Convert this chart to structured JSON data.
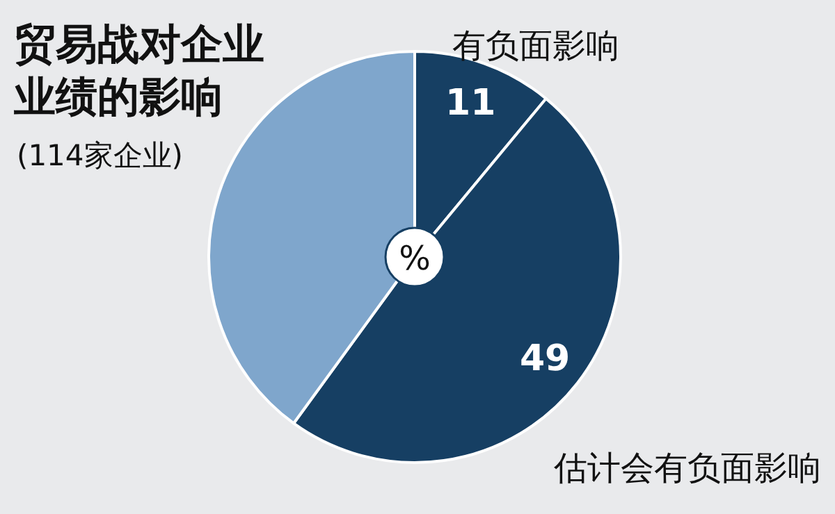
{
  "chart_data": {
    "type": "pie",
    "title": "贸易战对企业业绩的影响",
    "subtitle": "(114家企业)",
    "categories": [
      "有负面影响",
      "估计会有负面影响",
      null
    ],
    "values": [
      11,
      49,
      40
    ],
    "colors": [
      "#163f63",
      "#163f63",
      "#7fa6cc"
    ],
    "value_labels": [
      "11",
      "49",
      null
    ],
    "annotations": [
      "%"
    ]
  }
}
